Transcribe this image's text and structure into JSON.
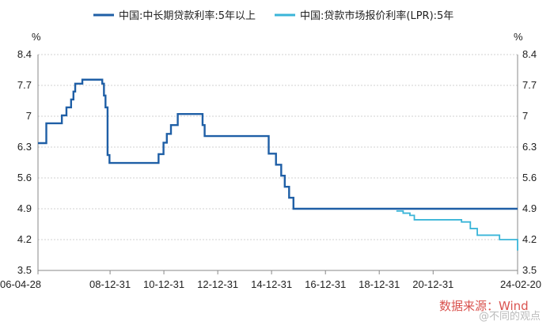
{
  "chart_data": {
    "type": "line",
    "y_unit_left": "%",
    "y_unit_right": "%",
    "yticks": [
      "8.4",
      "7.7",
      "7",
      "6.3",
      "5.6",
      "4.9",
      "4.2",
      "3.5"
    ],
    "ylim": [
      3.5,
      8.4
    ],
    "x_tick_labels": [
      "06-04-28",
      "08-12-31",
      "10-12-31",
      "12-12-31",
      "14-12-31",
      "16-12-31",
      "18-12-31",
      "20-12-31",
      "24-02-20"
    ],
    "x_tick_dates": [
      "2006-04-28",
      "2008-12-31",
      "2010-12-31",
      "2012-12-31",
      "2014-12-31",
      "2016-12-31",
      "2018-12-31",
      "2020-12-31",
      "2024-02-20"
    ],
    "xlim": [
      "2006-04-28",
      "2024-02-20"
    ],
    "grid": "horizontal",
    "legend_position": "top",
    "series": [
      {
        "name": "中国:中长期贷款利率:5年以上",
        "color": "#1f5fa6",
        "points": [
          [
            "2006-04-28",
            6.39
          ],
          [
            "2006-08-19",
            6.84
          ],
          [
            "2007-03-18",
            7.02
          ],
          [
            "2007-05-19",
            7.2
          ],
          [
            "2007-07-21",
            7.38
          ],
          [
            "2007-08-22",
            7.56
          ],
          [
            "2007-09-15",
            7.74
          ],
          [
            "2007-12-21",
            7.83
          ],
          [
            "2008-09-16",
            7.74
          ],
          [
            "2008-10-09",
            7.47
          ],
          [
            "2008-10-30",
            7.2
          ],
          [
            "2008-11-27",
            6.12
          ],
          [
            "2008-12-23",
            5.94
          ],
          [
            "2010-10-20",
            6.14
          ],
          [
            "2010-12-26",
            6.4
          ],
          [
            "2011-02-09",
            6.6
          ],
          [
            "2011-04-06",
            6.8
          ],
          [
            "2011-07-07",
            7.05
          ],
          [
            "2012-06-08",
            6.8
          ],
          [
            "2012-07-06",
            6.55
          ],
          [
            "2014-11-22",
            6.15
          ],
          [
            "2015-03-01",
            5.9
          ],
          [
            "2015-05-11",
            5.65
          ],
          [
            "2015-06-28",
            5.4
          ],
          [
            "2015-08-26",
            5.15
          ],
          [
            "2015-10-24",
            4.9
          ],
          [
            "2024-02-20",
            4.9
          ]
        ]
      },
      {
        "name": "中国:贷款市场报价利率(LPR):5年",
        "color": "#3ab5d8",
        "points": [
          [
            "2019-08-20",
            4.85
          ],
          [
            "2019-11-20",
            4.8
          ],
          [
            "2020-02-20",
            4.75
          ],
          [
            "2020-04-20",
            4.65
          ],
          [
            "2022-01-20",
            4.6
          ],
          [
            "2022-05-20",
            4.45
          ],
          [
            "2022-08-22",
            4.3
          ],
          [
            "2023-06-20",
            4.2
          ],
          [
            "2024-02-20",
            3.95
          ]
        ]
      }
    ]
  },
  "source_text": "数据来源：Wind",
  "watermark_text": "@不同的观点"
}
